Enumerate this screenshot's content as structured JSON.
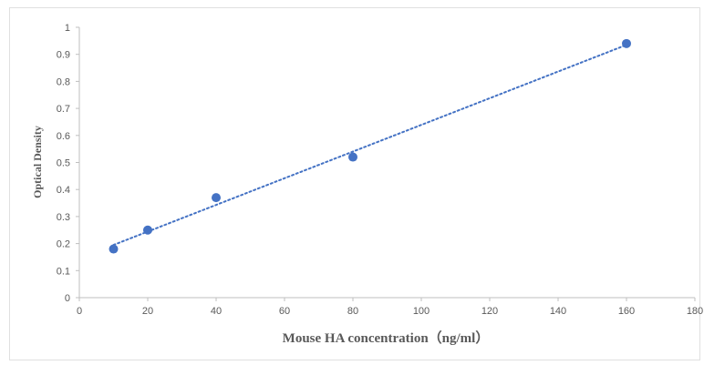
{
  "chart_data": {
    "type": "scatter",
    "title": "",
    "xlabel": "Mouse HA concentration（ng/ml）",
    "ylabel": "Optical Density",
    "xlim": [
      0,
      180
    ],
    "ylim": [
      0,
      1
    ],
    "xticks": [
      "0",
      "20",
      "40",
      "60",
      "80",
      "100",
      "120",
      "140",
      "160",
      "180"
    ],
    "yticks": [
      "0",
      "0.1",
      "0.2",
      "0.3",
      "0.4",
      "0.5",
      "0.6",
      "0.7",
      "0.8",
      "0.9",
      "1"
    ],
    "grid": false,
    "legend": "none",
    "series": [
      {
        "x": [
          10,
          20,
          40,
          80,
          160
        ],
        "y": [
          0.18,
          0.25,
          0.37,
          0.52,
          0.94
        ],
        "marker_color": "#4472c4"
      }
    ],
    "trendline": {
      "type": "linear",
      "style": "dotted",
      "color": "#4472c4",
      "x_range": [
        10,
        160
      ],
      "y_range": [
        0.195,
        0.935
      ]
    }
  }
}
